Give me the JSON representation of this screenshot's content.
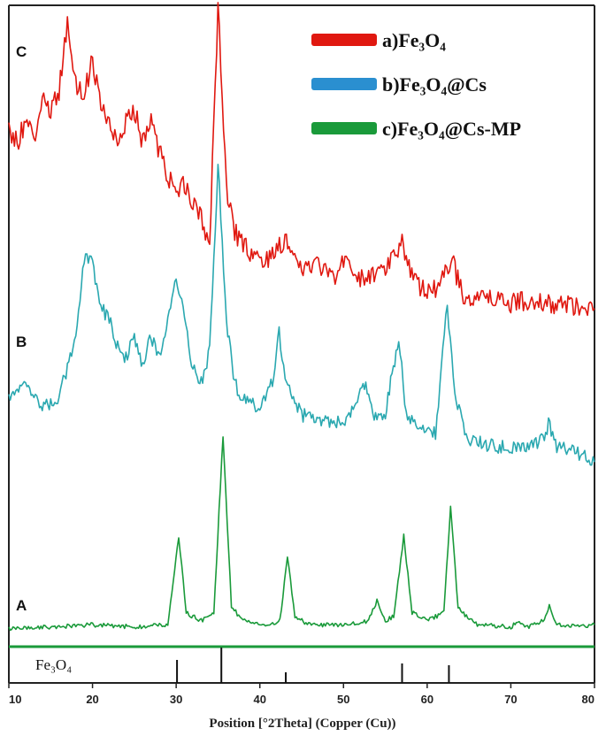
{
  "chart_data": {
    "type": "line",
    "xlabel": "Position [°2Theta] (Copper (Cu))",
    "ylabel": "",
    "xlim": [
      10,
      80
    ],
    "x_ticks": [
      10,
      20,
      30,
      40,
      50,
      60,
      70,
      80
    ],
    "y_ticks_shown": false,
    "grid": false,
    "legend_position": "top-right",
    "legend": [
      "a)Fe₃O₄",
      "b)Fe₃O₄@Cs",
      "c)Fe₃O₄@Cs-MP"
    ],
    "curve_labels": [
      "A",
      "B",
      "C"
    ],
    "reference": {
      "label": "Fe₃O₄",
      "peaks": [
        30.1,
        35.4,
        43.1,
        57.0,
        62.6
      ]
    },
    "series": [
      {
        "name": "c)Fe₃O₄@Cs-MP",
        "label": "A",
        "color": "#1a9a3a",
        "points": [
          [
            10,
            0.04
          ],
          [
            15,
            0.05
          ],
          [
            20,
            0.06
          ],
          [
            25,
            0.05
          ],
          [
            29,
            0.06
          ],
          [
            30.3,
            0.5
          ],
          [
            31.2,
            0.12
          ],
          [
            33,
            0.08
          ],
          [
            34.5,
            0.12
          ],
          [
            35.6,
            1.0
          ],
          [
            36.6,
            0.15
          ],
          [
            38,
            0.08
          ],
          [
            41,
            0.06
          ],
          [
            42.4,
            0.08
          ],
          [
            43.3,
            0.4
          ],
          [
            44.2,
            0.1
          ],
          [
            46,
            0.06
          ],
          [
            50,
            0.06
          ],
          [
            53,
            0.08
          ],
          [
            54,
            0.18
          ],
          [
            55,
            0.08
          ],
          [
            56,
            0.1
          ],
          [
            57.2,
            0.5
          ],
          [
            58.2,
            0.12
          ],
          [
            60,
            0.08
          ],
          [
            62,
            0.12
          ],
          [
            62.8,
            0.65
          ],
          [
            63.7,
            0.14
          ],
          [
            66,
            0.06
          ],
          [
            70,
            0.05
          ],
          [
            71,
            0.08
          ],
          [
            72,
            0.05
          ],
          [
            74,
            0.08
          ],
          [
            74.6,
            0.15
          ],
          [
            75.5,
            0.06
          ],
          [
            78,
            0.05
          ],
          [
            80,
            0.06
          ]
        ]
      },
      {
        "name": "b)Fe₃O₄@Cs",
        "label": "B",
        "color": "#2aa8b0",
        "points": [
          [
            10,
            0.25
          ],
          [
            12,
            0.3
          ],
          [
            14,
            0.22
          ],
          [
            16,
            0.26
          ],
          [
            17,
            0.35
          ],
          [
            18,
            0.45
          ],
          [
            19,
            0.7
          ],
          [
            20,
            0.68
          ],
          [
            21,
            0.55
          ],
          [
            22,
            0.5
          ],
          [
            23,
            0.42
          ],
          [
            24,
            0.38
          ],
          [
            25,
            0.45
          ],
          [
            26,
            0.36
          ],
          [
            27,
            0.45
          ],
          [
            28,
            0.38
          ],
          [
            29,
            0.5
          ],
          [
            30,
            0.65
          ],
          [
            31,
            0.5
          ],
          [
            32,
            0.35
          ],
          [
            33,
            0.3
          ],
          [
            34,
            0.4
          ],
          [
            35,
            1.0
          ],
          [
            36,
            0.5
          ],
          [
            37,
            0.3
          ],
          [
            38,
            0.25
          ],
          [
            40,
            0.22
          ],
          [
            41.5,
            0.3
          ],
          [
            42.3,
            0.46
          ],
          [
            43.2,
            0.3
          ],
          [
            45,
            0.2
          ],
          [
            48,
            0.18
          ],
          [
            50,
            0.17
          ],
          [
            52.5,
            0.3
          ],
          [
            53.5,
            0.2
          ],
          [
            55,
            0.2
          ],
          [
            56.6,
            0.45
          ],
          [
            57.5,
            0.2
          ],
          [
            59,
            0.15
          ],
          [
            61,
            0.14
          ],
          [
            62.4,
            0.55
          ],
          [
            63.3,
            0.25
          ],
          [
            65,
            0.12
          ],
          [
            68,
            0.1
          ],
          [
            71,
            0.1
          ],
          [
            74,
            0.12
          ],
          [
            74.5,
            0.17
          ],
          [
            75.5,
            0.1
          ],
          [
            78,
            0.08
          ],
          [
            80,
            0.05
          ]
        ]
      },
      {
        "name": "a)Fe₃O₄",
        "label": "C",
        "color": "#e01810",
        "points": [
          [
            10,
            0.6
          ],
          [
            11,
            0.55
          ],
          [
            12,
            0.63
          ],
          [
            13,
            0.56
          ],
          [
            14,
            0.7
          ],
          [
            15,
            0.66
          ],
          [
            16,
            0.72
          ],
          [
            17,
            0.95
          ],
          [
            18,
            0.75
          ],
          [
            19,
            0.72
          ],
          [
            20,
            0.82
          ],
          [
            21,
            0.68
          ],
          [
            22,
            0.6
          ],
          [
            23,
            0.56
          ],
          [
            24,
            0.62
          ],
          [
            25,
            0.66
          ],
          [
            26,
            0.55
          ],
          [
            27,
            0.62
          ],
          [
            28,
            0.52
          ],
          [
            29,
            0.45
          ],
          [
            30,
            0.38
          ],
          [
            31,
            0.42
          ],
          [
            32,
            0.36
          ],
          [
            33,
            0.3
          ],
          [
            34,
            0.22
          ],
          [
            35,
            1.0
          ],
          [
            36,
            0.4
          ],
          [
            37,
            0.26
          ],
          [
            38,
            0.22
          ],
          [
            39,
            0.18
          ],
          [
            40,
            0.17
          ],
          [
            41,
            0.16
          ],
          [
            42,
            0.2
          ],
          [
            43,
            0.24
          ],
          [
            44,
            0.16
          ],
          [
            45,
            0.15
          ],
          [
            47,
            0.15
          ],
          [
            49,
            0.12
          ],
          [
            50,
            0.16
          ],
          [
            52,
            0.11
          ],
          [
            54,
            0.12
          ],
          [
            55,
            0.13
          ],
          [
            56,
            0.17
          ],
          [
            57,
            0.23
          ],
          [
            58,
            0.12
          ],
          [
            59,
            0.08
          ],
          [
            60,
            0.07
          ],
          [
            61,
            0.07
          ],
          [
            62,
            0.11
          ],
          [
            63,
            0.17
          ],
          [
            64,
            0.07
          ],
          [
            65,
            0.04
          ],
          [
            67,
            0.04
          ],
          [
            70,
            0.03
          ],
          [
            72,
            0.03
          ],
          [
            75,
            0.02
          ],
          [
            78,
            0.02
          ],
          [
            80,
            0.01
          ]
        ]
      }
    ]
  }
}
